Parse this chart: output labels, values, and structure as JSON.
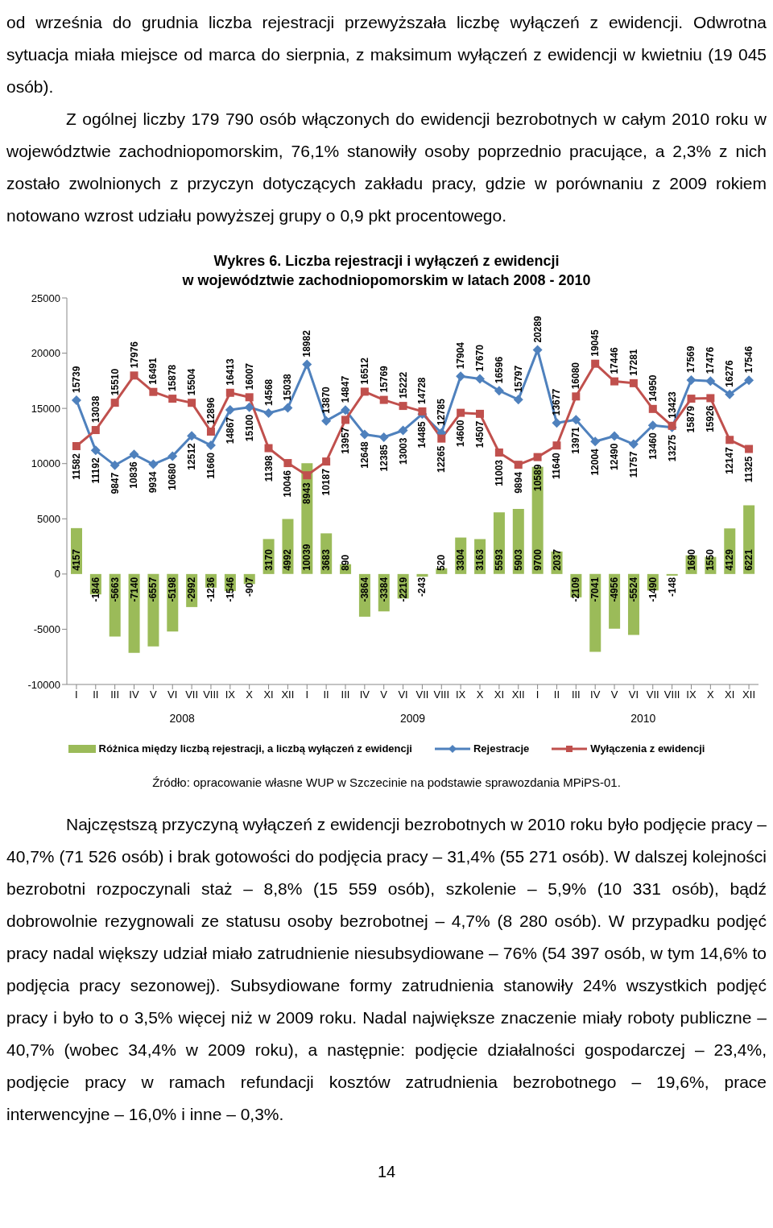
{
  "chart_data": {
    "type": "bar",
    "title": "Wykres 6. Liczba rejestracji i wyłączeń z ewidencji\nw województwie zachodniopomorskim w latach 2008 - 2010",
    "categories": [
      "I",
      "II",
      "III",
      "IV",
      "V",
      "VI",
      "VII",
      "VIII",
      "IX",
      "X",
      "XI",
      "XII",
      "I",
      "II",
      "III",
      "IV",
      "V",
      "VI",
      "VII",
      "VIII",
      "IX",
      "X",
      "XI",
      "XII",
      "I",
      "II",
      "III",
      "IV",
      "V",
      "VI",
      "VII",
      "VIII",
      "IX",
      "X",
      "XI",
      "XII"
    ],
    "series": [
      {
        "name": "Różnica między liczbą rejestracji, a liczbą wyłączeń z ewidencji",
        "color": "#9bbb59",
        "values": [
          4157,
          -1846,
          -5663,
          -7140,
          -6557,
          -5198,
          -2992,
          -1236,
          -1546,
          -907,
          3170,
          4992,
          10039,
          3683,
          890,
          -3864,
          -3384,
          -2219,
          -243,
          520,
          3304,
          3163,
          5593,
          5903,
          9700,
          2037,
          -2109,
          -7041,
          -4956,
          -5524,
          -1490,
          -148,
          1690,
          1550,
          4129,
          6221
        ]
      },
      {
        "name": "Rejestracje",
        "type": "line",
        "color": "#4f81bd",
        "marker": "diamond",
        "values": [
          15739,
          11192,
          9847,
          10836,
          9934,
          10680,
          12512,
          11660,
          14867,
          15100,
          14568,
          15038,
          18982,
          13870,
          14847,
          12648,
          12385,
          13003,
          14485,
          12785,
          17904,
          17670,
          16596,
          15797,
          20289,
          13677,
          13971,
          12004,
          12490,
          11757,
          13460,
          13275,
          17569,
          17476,
          16276,
          17546
        ]
      },
      {
        "name": "Wyłączenia z ewidencji",
        "type": "line",
        "color": "#c0504d",
        "marker": "square",
        "values": [
          11582,
          13038,
          15510,
          17976,
          16491,
          15878,
          15504,
          12896,
          16413,
          16007,
          11398,
          10046,
          8943,
          10187,
          13957,
          16512,
          15769,
          15222,
          14728,
          12265,
          14600,
          14507,
          11003,
          9894,
          10589,
          11640,
          16080,
          19045,
          17446,
          17281,
          14950,
          13423,
          15879,
          15926,
          12147,
          11325
        ]
      }
    ],
    "ylim": [
      -10000,
      25000
    ],
    "yticks": [
      -10000,
      -5000,
      0,
      5000,
      10000,
      15000,
      20000,
      25000
    ],
    "data_labels": true,
    "legend": "bottom",
    "annotations": [
      "od września do grudnia liczba rejestracji przewyższała liczbę wyłączeń z ewidencji. Odwrotna sytuacja miała miejsce od marca do sierpnia, z maksimum wyłączeń z ewidencji w kwietniu (19 045 osób).",
      "Z ogólnej liczby 179 790 osób włączonych do ewidencji bezrobotnych w całym 2010 roku w województwie zachodniopomorskim, 76,1% stanowiły osoby poprzednio pracujące, a 2,3% z nich zostało zwolnionych z przyczyn dotyczących zakładu pracy, gdzie w porównaniu z 2009 rokiem notowano wzrost udziału powyższej grupy o 0,9 pkt procentowego.",
      "2008",
      "2009",
      "2010",
      "Źródło: opracowanie własne WUP w Szczecinie na podstawie sprawozdania MPiPS-01.",
      "Najczęstszą przyczyną wyłączeń z ewidencji bezrobotnych w 2010 roku było podjęcie pracy – 40,7% (71 526 osób) i brak gotowości do podjęcia pracy – 31,4% (55 271 osób). W dalszej kolejności bezrobotni rozpoczynali staż – 8,8% (15 559 osób), szkolenie – 5,9% (10 331 osób), bądź dobrowolnie rezygnowali ze statusu osoby bezrobotnej – 4,7% (8 280 osób). W przypadku podjęć pracy nadal większy udział miało zatrudnienie niesubsydiowane – 76% (54 397 osób, w tym 14,6% to podjęcia pracy sezonowej). Subsydiowane formy zatrudnienia stanowiły 24% wszystkich podjęć pracy i było to o 3,5% więcej niż w 2009 roku. Nadal największe znaczenie miały roboty publiczne – 40,7% (wobec 34,4% w 2009 roku), a następnie: podjęcie działalności gospodarczej – 23,4%, podjęcie pracy w ramach refundacji kosztów zatrudnienia bezrobotnego – 19,6%, prace interwencyjne – 16,0% i inne – 0,3%.",
      "14"
    ]
  }
}
